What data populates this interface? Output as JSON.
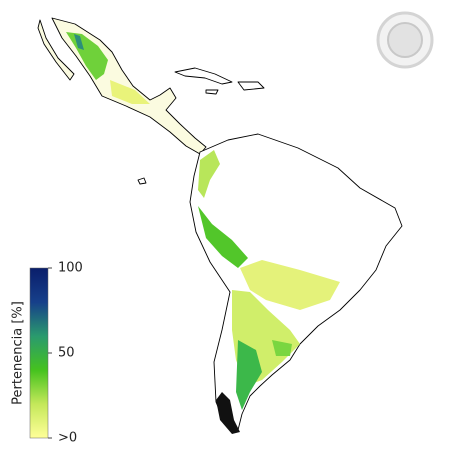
{
  "legend": {
    "title": "Pertenencia [%]",
    "vmin": 0,
    "vmax": 100,
    "colors": [
      "#ffff99",
      "#c4e85a",
      "#45c21e",
      "#2a9a6e",
      "#163f8a",
      "#0a1e6b"
    ],
    "ticks": [
      100,
      50,
      {
        "value": 0,
        "label": ">0"
      }
    ]
  }
}
